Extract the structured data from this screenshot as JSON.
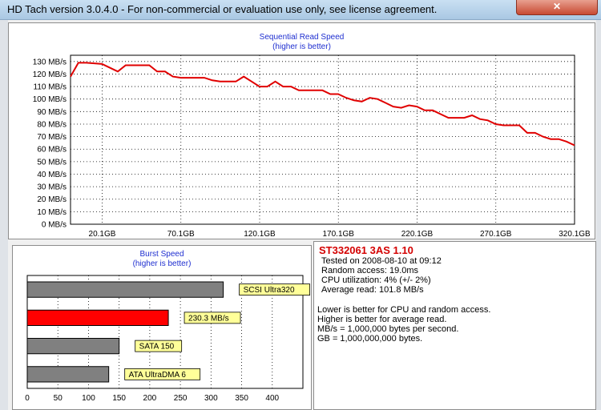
{
  "window": {
    "title": "HD Tach version 3.0.4.0  - For non-commercial or evaluation use only, see license agreement."
  },
  "seq_chart": {
    "title": "Sequential Read Speed",
    "subtitle": "(higher is better)",
    "line_color": "#e00000",
    "chart_data": {
      "type": "line",
      "title": "Sequential Read Speed",
      "subtitle": "(higher is better)",
      "y_ticks": [
        "0 MB/s",
        "10 MB/s",
        "20 MB/s",
        "30 MB/s",
        "40 MB/s",
        "50 MB/s",
        "60 MB/s",
        "70 MB/s",
        "80 MB/s",
        "90 MB/s",
        "100 MB/s",
        "110 MB/s",
        "120 MB/s",
        "130 MB/s"
      ],
      "x_ticks": [
        "20.1GB",
        "70.1GB",
        "120.1GB",
        "170.1GB",
        "220.1GB",
        "270.1GB",
        "320.1GB"
      ],
      "x_tick_values": [
        20.1,
        70.1,
        120.1,
        170.1,
        220.1,
        270.1,
        320.1
      ],
      "xlim": [
        0,
        320.1
      ],
      "ylim": [
        0,
        135
      ],
      "grid": true,
      "series": [
        {
          "x": [
            0,
            5,
            10,
            20,
            30,
            35,
            40,
            45,
            50,
            55,
            60,
            65,
            70,
            75,
            80,
            85,
            90,
            95,
            100,
            105,
            110,
            115,
            120,
            125,
            130,
            135,
            140,
            145,
            150,
            155,
            160,
            165,
            170,
            175,
            180,
            185,
            190,
            195,
            200,
            205,
            210,
            215,
            220,
            225,
            230,
            235,
            240,
            245,
            250,
            255,
            260,
            265,
            270,
            275,
            280,
            285,
            290,
            295,
            300,
            305,
            310,
            315,
            320.1
          ],
          "values": [
            118,
            129,
            129,
            128,
            122,
            127,
            127,
            127,
            127,
            122,
            122,
            118,
            117,
            117,
            117,
            117,
            115,
            114,
            114,
            114,
            118,
            114,
            110,
            110,
            114,
            110,
            110,
            107,
            107,
            107,
            107,
            104,
            104,
            101,
            99,
            98,
            101,
            100,
            97,
            94,
            93,
            95,
            94,
            91,
            91,
            88,
            85,
            85,
            85,
            87,
            84,
            83,
            80,
            79,
            79,
            79,
            73,
            73,
            70,
            68,
            68,
            66,
            63
          ]
        }
      ]
    }
  },
  "burst_chart": {
    "title": "Burst Speed",
    "subtitle": "(higher is better)",
    "chart_data": {
      "type": "bar",
      "title": "Burst Speed",
      "subtitle": "(higher is better)",
      "orientation": "horizontal",
      "xlim": [
        0,
        450
      ],
      "x_ticks": [
        0,
        50,
        100,
        150,
        200,
        250,
        300,
        350,
        400
      ],
      "grid": true,
      "categories": [
        "SCSI Ultra320",
        "230.3 MB/s",
        "SATA 150",
        "ATA UltraDMA 6"
      ],
      "values": [
        320,
        230.3,
        150,
        133
      ],
      "colors": [
        "#808080",
        "#ff0000",
        "#808080",
        "#808080"
      ],
      "label_bg": "#ffff99"
    }
  },
  "drive_info": {
    "title": "ST332061 3AS 1.10",
    "tested_on": "Tested on 2008-08-10 at 09:12",
    "random_access": "Random access: 19.0ms",
    "cpu": "CPU utilization: 4% (+/- 2%)",
    "average_read": "Average read: 101.8 MB/s",
    "notes": [
      "Lower is better for CPU and random access.",
      "Higher is better for average read.",
      "MB/s = 1,000,000 bytes per second.",
      "GB = 1,000,000,000 bytes."
    ]
  }
}
